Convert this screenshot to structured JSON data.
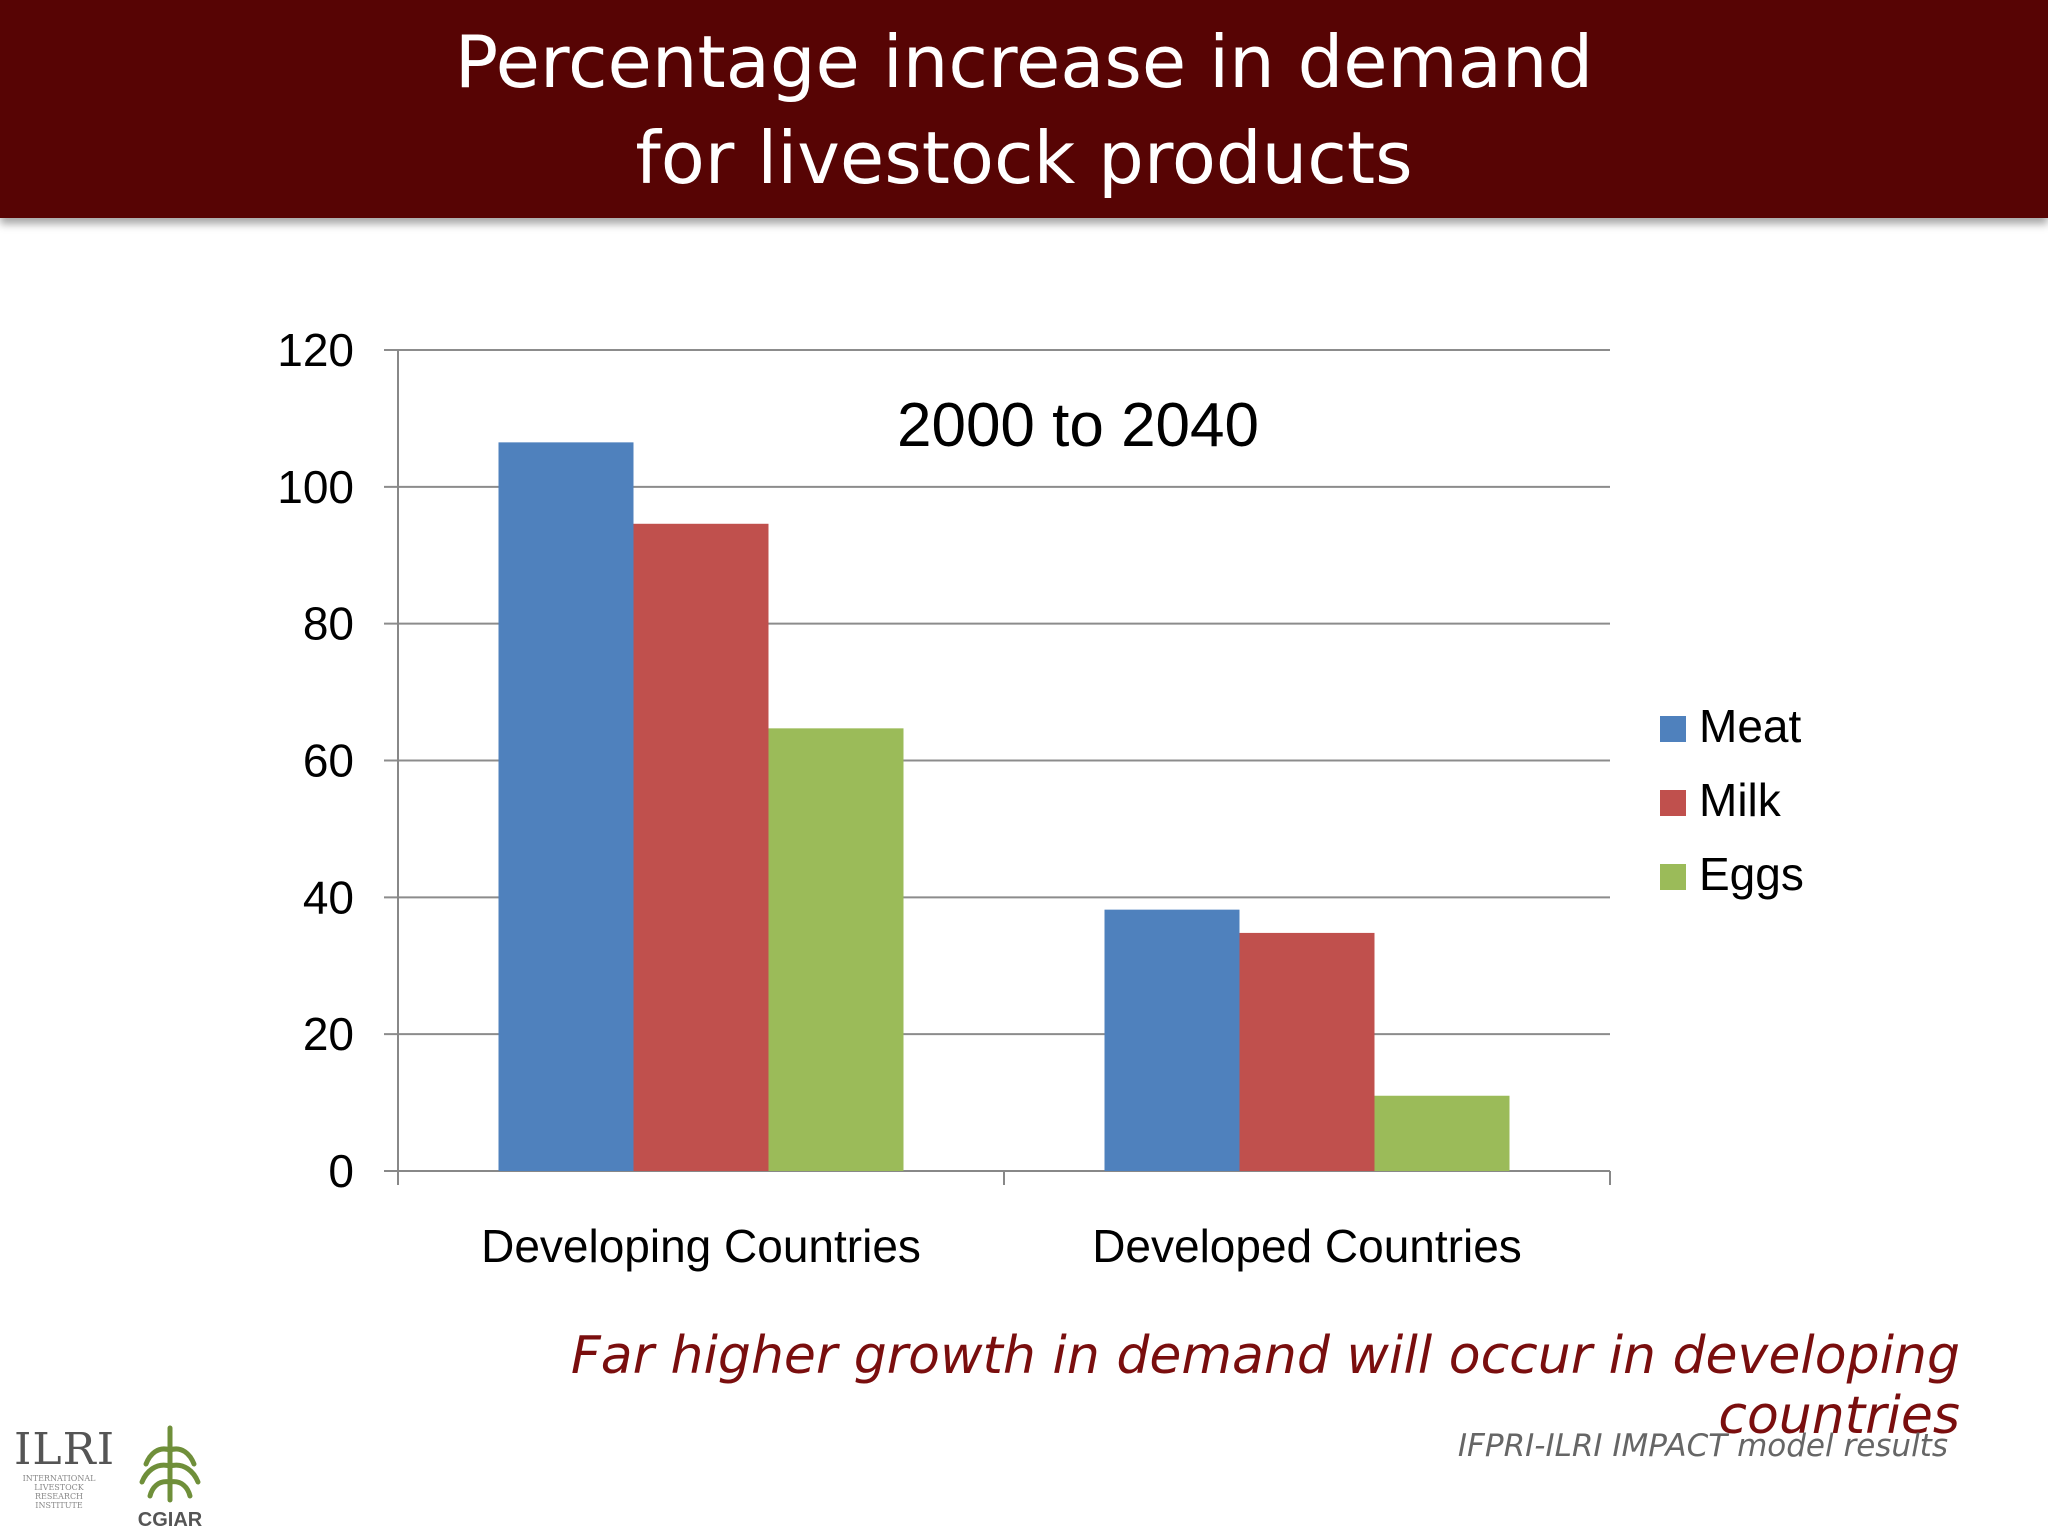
{
  "slide": {
    "title_line1": "Percentage increase in demand",
    "title_line2": "for livestock products",
    "caption": "Far higher growth in demand will occur in developing countries",
    "source": "IFPRI-ILRI IMPACT model results",
    "logos": {
      "ilri": "ILRI",
      "ilri_sub": "INTERNATIONAL LIVESTOCK RESEARCH INSTITUTE",
      "cgiar": "CGIAR"
    }
  },
  "chart_data": {
    "type": "bar",
    "title": "2000 to 2040",
    "categories": [
      "Developing Countries",
      "Developed Countries"
    ],
    "series": [
      {
        "name": "Meat",
        "values": [
          106.5,
          38.2
        ],
        "color": "#4F81BD"
      },
      {
        "name": "Milk",
        "values": [
          94.6,
          34.8
        ],
        "color": "#C0504D"
      },
      {
        "name": "Eggs",
        "values": [
          64.7,
          11.0
        ],
        "color": "#9BBB59"
      }
    ],
    "ylim": [
      0,
      120
    ],
    "yticks": [
      0,
      20,
      40,
      60,
      80,
      100,
      120
    ],
    "ytick_labels": [
      "0",
      "20",
      "40",
      "60",
      "80",
      "100",
      "120"
    ],
    "grid": true,
    "legend_position": "right",
    "xlabel": "",
    "ylabel": ""
  }
}
